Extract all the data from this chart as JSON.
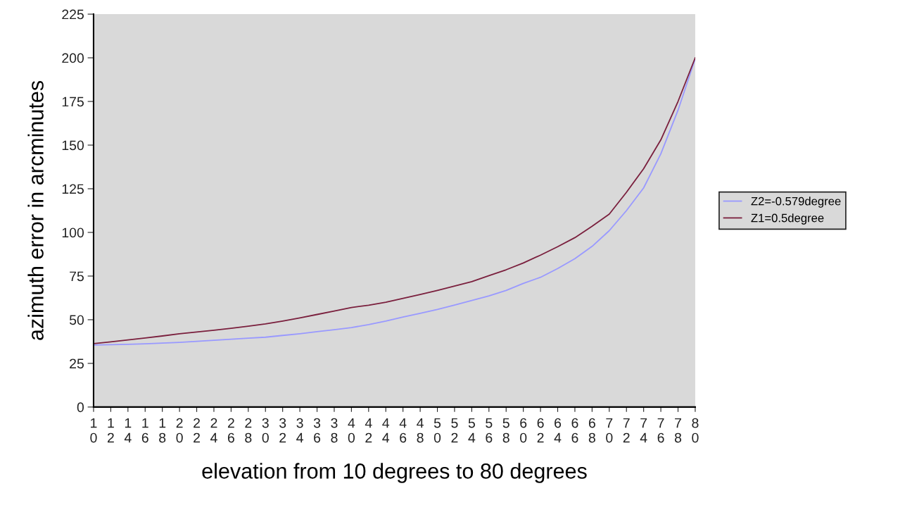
{
  "chart_data": {
    "type": "line",
    "xlabel": "elevation from 10 degrees to 80 degrees",
    "ylabel": "azimuth error in arcminutes",
    "categories": [
      "1\n0",
      "1\n2",
      "1\n4",
      "1\n6",
      "1\n8",
      "2\n0",
      "2\n2",
      "2\n4",
      "2\n6",
      "2\n8",
      "3\n0",
      "3\n2",
      "3\n4",
      "3\n6",
      "3\n8",
      "4\n0",
      "4\n2",
      "4\n4",
      "4\n6",
      "4\n8",
      "5\n0",
      "5\n2",
      "5\n4",
      "5\n6",
      "5\n8",
      "6\n0",
      "6\n2",
      "6\n4",
      "6\n6",
      "6\n8",
      "7\n0",
      "7\n2",
      "7\n4",
      "7\n6",
      "7\n8",
      "8\n0"
    ],
    "ylim": [
      0,
      225
    ],
    "yticks": [
      0,
      25,
      50,
      75,
      100,
      125,
      150,
      175,
      200,
      225
    ],
    "grid": false,
    "legend": "right",
    "marker": "none",
    "line_style": "solid",
    "series": [
      {
        "name": "Z2=-0.579degree",
        "color": "#9999ff",
        "values": [
          35.5,
          35.7,
          35.9,
          36.2,
          36.6,
          37,
          37.6,
          38.2,
          38.8,
          39.4,
          40,
          41,
          42,
          43.2,
          44.3,
          45.5,
          47.2,
          49.2,
          51.5,
          53.7,
          55.9,
          58.4,
          61,
          63.6,
          66.8,
          70.8,
          74.3,
          79.3,
          85,
          92,
          101,
          112.5,
          125.5,
          145,
          170,
          199.5
        ]
      },
      {
        "name": "Z1=0.5degree",
        "color": "#7a1f3d",
        "values": [
          36.3,
          37.3,
          38.4,
          39.5,
          40.7,
          42,
          43,
          44,
          45.1,
          46.3,
          47.6,
          49.2,
          51,
          53,
          55,
          57,
          58.3,
          60,
          62.2,
          64.4,
          66.8,
          69.3,
          71.8,
          75.2,
          78.6,
          82.5,
          87,
          91.8,
          97,
          103.5,
          110.5,
          123,
          136.5,
          153,
          175,
          200
        ]
      }
    ]
  }
}
